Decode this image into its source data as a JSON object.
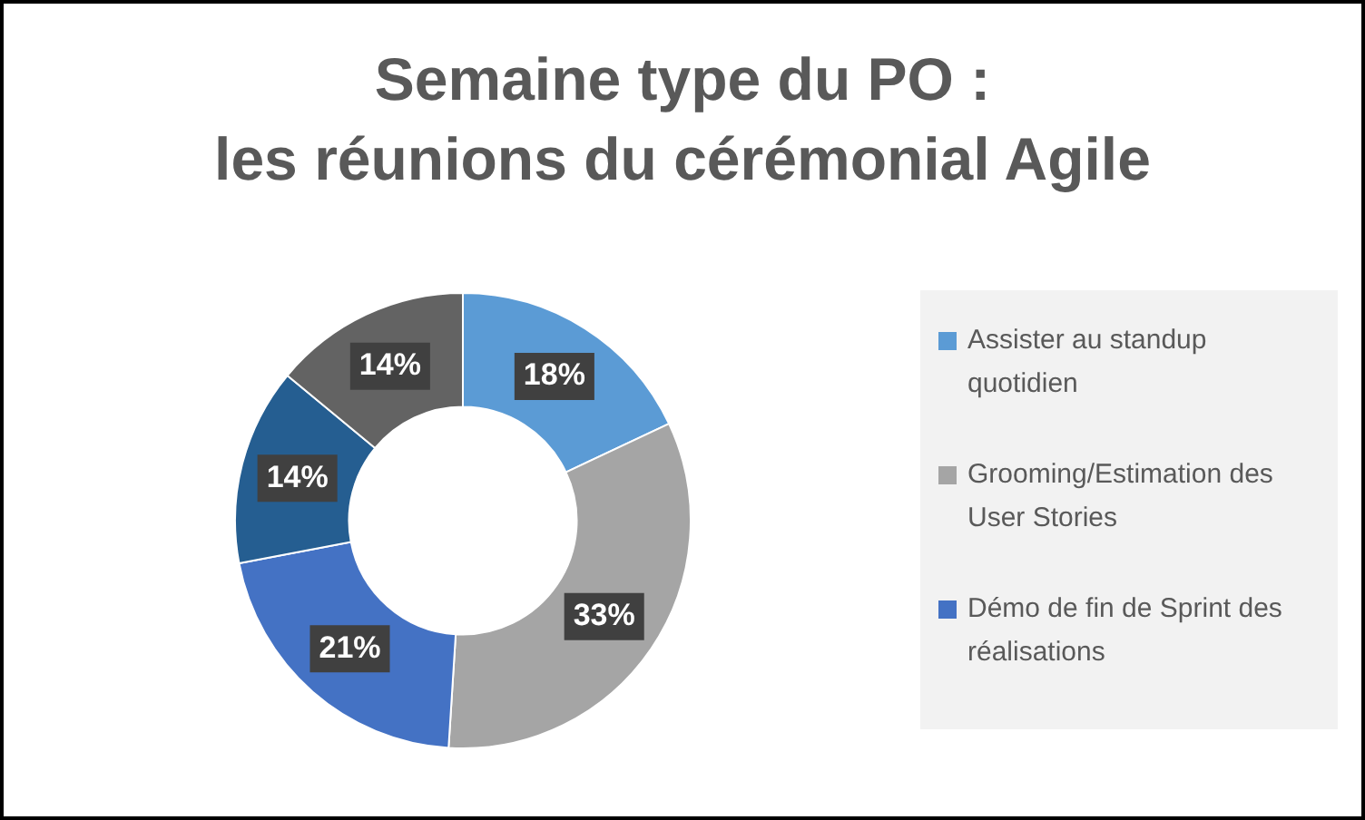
{
  "chart_data": {
    "type": "donut",
    "title": "Semaine type du PO :\nles réunions du cérémonial Agile",
    "categories": [
      "Assister au standup quotidien",
      "Grooming/Estimation des User Stories",
      "Démo de fin de Sprint des réalisations",
      null,
      null
    ],
    "values": [
      18,
      33,
      21,
      14,
      14
    ],
    "value_labels": [
      "18%",
      "33%",
      "21%",
      "14%",
      "14%"
    ],
    "colors": [
      "#5b9bd5",
      "#a5a5a5",
      "#4472c4",
      "#255e91",
      "#636363"
    ],
    "legend": "right"
  }
}
